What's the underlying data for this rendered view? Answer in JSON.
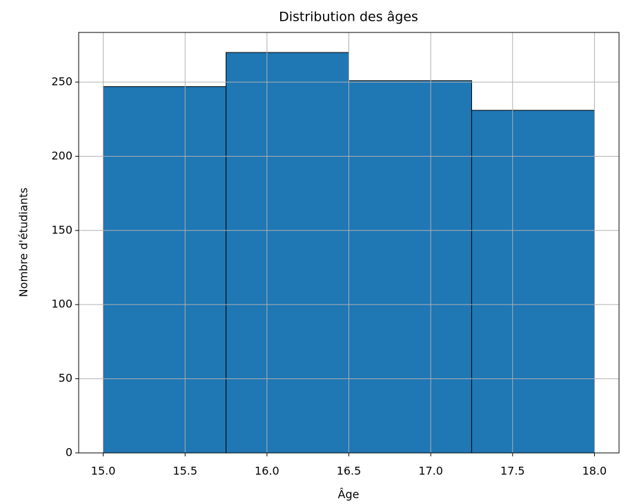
{
  "chart_data": {
    "type": "histogram",
    "title": "Distribution des âges",
    "xlabel": "Âge",
    "ylabel": "Nombre d'étudiants",
    "bins": [
      15,
      15.75,
      16.5,
      17.25,
      18
    ],
    "counts": [
      247,
      270,
      251,
      231
    ],
    "color": "#1f77b4",
    "edgecolor": "#000000",
    "xlim": [
      14.85,
      18.15
    ],
    "xticks": [
      {
        "value": 15,
        "label": "15.0"
      },
      15.5,
      {
        "value": 16,
        "label": "16.0"
      },
      16.5,
      {
        "value": 17,
        "label": "17.0"
      },
      17.5,
      {
        "value": 18,
        "label": "18.0"
      }
    ],
    "ylim": [
      0,
      283.5
    ],
    "yticks": [
      0,
      50,
      100,
      150,
      200,
      250
    ],
    "grid": true
  }
}
